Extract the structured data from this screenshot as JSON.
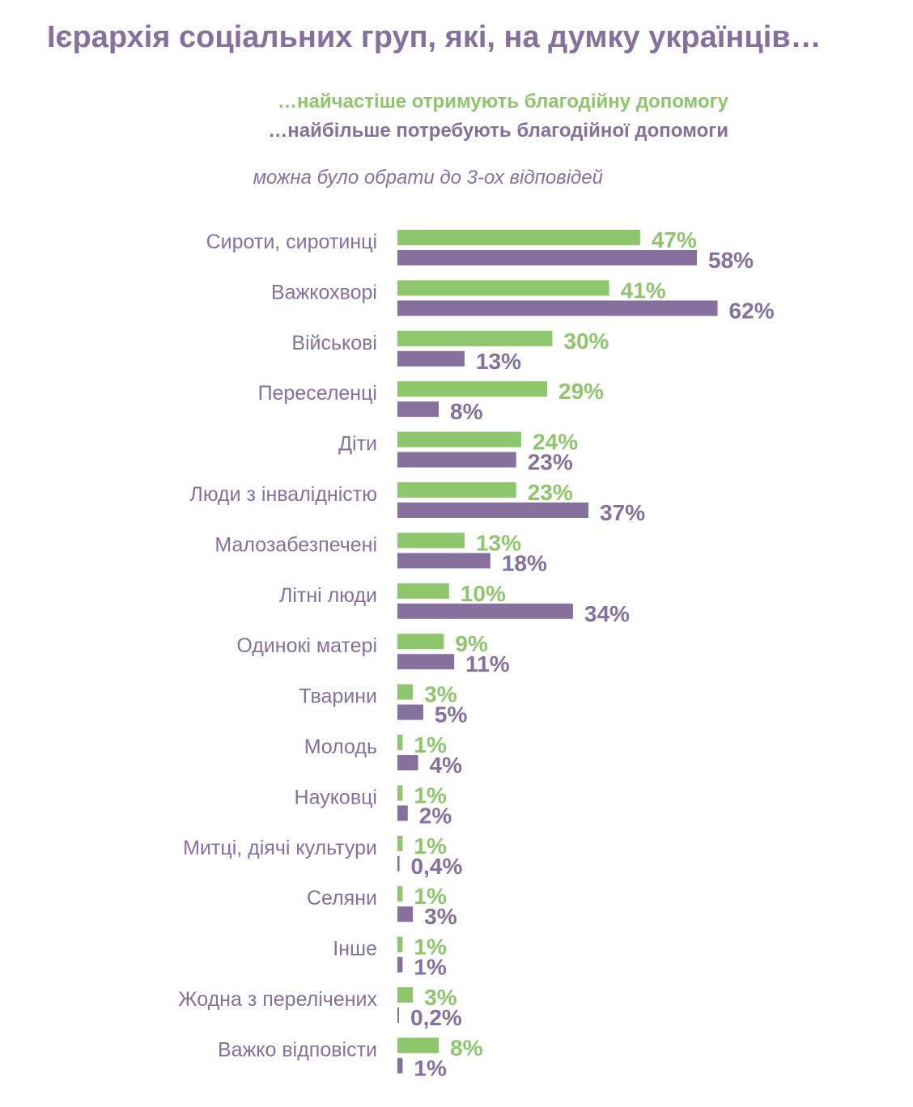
{
  "header": {
    "title": "Ієрархія соціальних груп, які, на думку українців…",
    "subtitle_green": "…найчастіше отримують благодійну допомогу",
    "subtitle_purple": "…найбільше потребують благодійної допомоги",
    "note": "можна було обрати до 3-ох відповідей"
  },
  "colors": {
    "green": "#8dc66b",
    "purple": "#85709e",
    "title": "#85709e"
  },
  "chart_data": {
    "type": "bar",
    "orientation": "horizontal",
    "title": "Ієрархія соціальних груп, які, на думку українців…",
    "categories": [
      "Сироти, сиротинці",
      "Важкохворі",
      "Військові",
      "Переселенці",
      "Діти",
      "Люди з інвалідністю",
      "Малозабезпечені",
      "Літні люди",
      "Одинокі матері",
      "Тварини",
      "Молодь",
      "Науковці",
      "Митці, діячі культури",
      "Селяни",
      "Інше",
      "Жодна з перелічених",
      "Важко відповісти"
    ],
    "series": [
      {
        "name": "…найчастіше отримують благодійну допомогу",
        "color": "#8dc66b",
        "values": [
          47,
          41,
          30,
          29,
          24,
          23,
          13,
          10,
          9,
          3,
          1,
          1,
          1,
          1,
          1,
          3,
          8
        ],
        "labels": [
          "47%",
          "41%",
          "30%",
          "29%",
          "24%",
          "23%",
          "13%",
          "10%",
          "9%",
          "3%",
          "1%",
          "1%",
          "1%",
          "1%",
          "1%",
          "3%",
          "8%"
        ]
      },
      {
        "name": "…найбільше потребують благодійної допомоги",
        "color": "#85709e",
        "values": [
          58,
          62,
          13,
          8,
          23,
          37,
          18,
          34,
          11,
          5,
          4,
          2,
          0.4,
          3,
          1,
          0.2,
          1
        ],
        "labels": [
          "58%",
          "62%",
          "13%",
          "8%",
          "23%",
          "37%",
          "18%",
          "34%",
          "11%",
          "5%",
          "4%",
          "2%",
          "0,4%",
          "3%",
          "1%",
          "0,2%",
          "1%"
        ]
      }
    ],
    "xlim": [
      0,
      62
    ],
    "grid": false,
    "legend": "top-right, as colored subtitles"
  }
}
